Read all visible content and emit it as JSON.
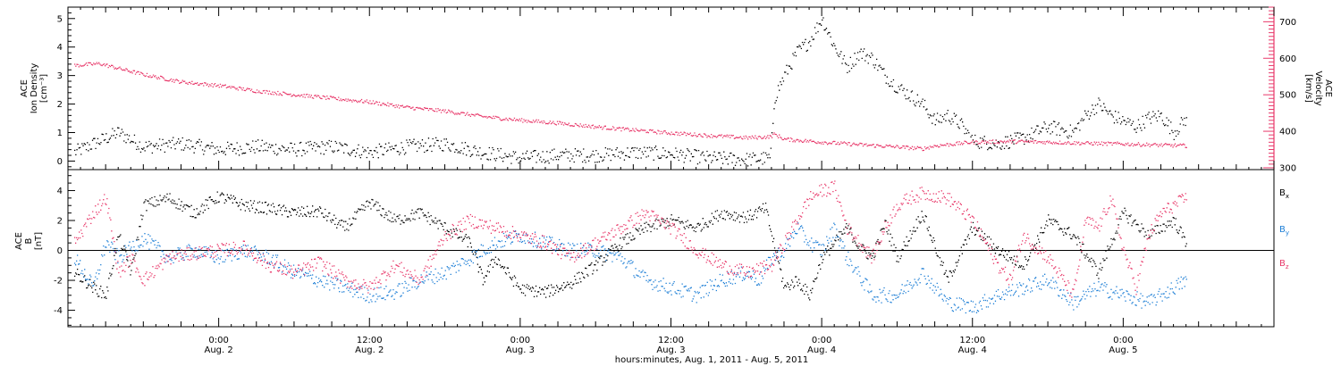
{
  "chart_data": [
    {
      "type": "scatter",
      "panel": "top",
      "left_axis": {
        "title_lines": [
          "ACE",
          "Ion Density",
          "[cm⁻³]"
        ],
        "ticks": [
          0,
          1,
          2,
          3,
          4,
          5
        ],
        "ylim": [
          -0.3,
          5.4
        ]
      },
      "right_axis": {
        "title_lines": [
          "ACE",
          "Velocity",
          "[km/s]"
        ],
        "ticks": [
          300,
          400,
          500,
          600,
          700
        ],
        "ylim": [
          295,
          740
        ]
      },
      "x_hours_lim": [
        -12,
        84
      ],
      "series": [
        {
          "axis": "left",
          "color": "#000000",
          "knots": [
            [
              -11.5,
              0.3
            ],
            [
              -9,
              0.8
            ],
            [
              -8,
              1.0
            ],
            [
              -6,
              0.5
            ],
            [
              -3,
              0.6
            ],
            [
              0,
              0.4
            ],
            [
              3,
              0.5
            ],
            [
              6,
              0.4
            ],
            [
              9,
              0.5
            ],
            [
              12,
              0.3
            ],
            [
              15,
              0.5
            ],
            [
              18,
              0.6
            ],
            [
              21,
              0.3
            ],
            [
              24,
              0.1
            ],
            [
              27,
              0.2
            ],
            [
              30,
              0.2
            ],
            [
              33,
              0.3
            ],
            [
              36,
              0.25
            ],
            [
              39,
              0.1
            ],
            [
              42,
              0.05
            ],
            [
              43.9,
              0.1
            ],
            [
              44.2,
              2.2
            ],
            [
              45,
              3.0
            ],
            [
              46,
              3.8
            ],
            [
              47,
              4.2
            ],
            [
              48,
              5.0
            ],
            [
              49,
              4.0
            ],
            [
              50,
              3.3
            ],
            [
              51,
              3.8
            ],
            [
              52,
              3.6
            ],
            [
              53,
              3.0
            ],
            [
              54,
              2.6
            ],
            [
              55,
              2.3
            ],
            [
              56,
              2.0
            ],
            [
              57,
              1.4
            ],
            [
              58,
              1.6
            ],
            [
              59,
              1.3
            ],
            [
              60,
              0.7
            ],
            [
              62,
              0.6
            ],
            [
              64,
              0.8
            ],
            [
              66,
              1.2
            ],
            [
              68,
              1.0
            ],
            [
              69,
              1.6
            ],
            [
              70,
              2.0
            ],
            [
              71,
              1.6
            ],
            [
              72,
              1.4
            ],
            [
              73,
              1.2
            ],
            [
              74,
              1.5
            ],
            [
              75,
              1.6
            ],
            [
              76,
              1.0
            ],
            [
              77,
              1.5
            ]
          ],
          "spread": 0.25
        },
        {
          "axis": "right",
          "color": "#e8386a",
          "knots": [
            [
              -11.5,
              580
            ],
            [
              -9.5,
              585
            ],
            [
              -6,
              555
            ],
            [
              -3,
              535
            ],
            [
              0,
              525
            ],
            [
              3,
              510
            ],
            [
              6,
              500
            ],
            [
              9,
              490
            ],
            [
              12,
              480
            ],
            [
              15,
              465
            ],
            [
              18,
              455
            ],
            [
              21,
              440
            ],
            [
              24,
              430
            ],
            [
              27,
              422
            ],
            [
              30,
              412
            ],
            [
              33,
              403
            ],
            [
              36,
              395
            ],
            [
              39,
              388
            ],
            [
              42,
              382
            ],
            [
              43.9,
              385
            ],
            [
              44.2,
              392
            ],
            [
              45,
              378
            ],
            [
              48,
              370
            ],
            [
              51,
              363
            ],
            [
              54,
              357
            ],
            [
              56,
              352
            ],
            [
              57,
              360
            ],
            [
              60,
              370
            ],
            [
              63,
              372
            ],
            [
              66,
              370
            ],
            [
              69,
              367
            ],
            [
              72,
              365
            ],
            [
              75,
              362
            ],
            [
              77,
              360
            ]
          ],
          "spread": 5
        }
      ]
    },
    {
      "type": "scatter",
      "panel": "bottom",
      "left_axis": {
        "title_lines": [
          "ACE",
          "B",
          "[nT]"
        ],
        "ticks": [
          -4,
          -2,
          0,
          2,
          4
        ],
        "ylim": [
          -5.1,
          5.4
        ]
      },
      "zero_line": 0,
      "x_hours_lim": [
        -12,
        84
      ],
      "legend": [
        {
          "label": "Bx",
          "main": "B",
          "sub": "x",
          "color": "#000000"
        },
        {
          "label": "By",
          "main": "B",
          "sub": "y",
          "color": "#1e7fd6"
        },
        {
          "label": "Bz",
          "main": "B",
          "sub": "z",
          "color": "#e8386a"
        }
      ],
      "series": [
        {
          "name": "Bx",
          "color": "#000000",
          "knots": [
            [
              -11.5,
              -1.5
            ],
            [
              -10,
              -2.5
            ],
            [
              -9,
              -3.0
            ],
            [
              -8,
              1.0
            ],
            [
              -7,
              -1.5
            ],
            [
              -6,
              3.0
            ],
            [
              -4,
              3.5
            ],
            [
              -2,
              2.5
            ],
            [
              0,
              3.6
            ],
            [
              2,
              3.0
            ],
            [
              4,
              2.8
            ],
            [
              6,
              2.5
            ],
            [
              8,
              2.6
            ],
            [
              10,
              1.5
            ],
            [
              12,
              3.2
            ],
            [
              14,
              2.0
            ],
            [
              16,
              2.5
            ],
            [
              18,
              1.5
            ],
            [
              20,
              0.5
            ],
            [
              21,
              -2.0
            ],
            [
              22,
              -0.5
            ],
            [
              24,
              -2.6
            ],
            [
              26,
              -2.8
            ],
            [
              28,
              -2.2
            ],
            [
              30,
              -1.0
            ],
            [
              32,
              0.5
            ],
            [
              34,
              1.5
            ],
            [
              36,
              2.0
            ],
            [
              38,
              1.5
            ],
            [
              40,
              2.5
            ],
            [
              42,
              2.2
            ],
            [
              43.5,
              2.8
            ],
            [
              44,
              1.0
            ],
            [
              45,
              -2.5
            ],
            [
              46,
              -2.0
            ],
            [
              47,
              -3.0
            ],
            [
              48,
              -0.5
            ],
            [
              50,
              1.5
            ],
            [
              51,
              0.2
            ],
            [
              52,
              -0.5
            ],
            [
              53,
              1.8
            ],
            [
              54,
              -0.5
            ],
            [
              56,
              2.5
            ],
            [
              58,
              -2.0
            ],
            [
              60,
              1.5
            ],
            [
              62,
              0.0
            ],
            [
              64,
              -1.0
            ],
            [
              66,
              2.0
            ],
            [
              68,
              1.0
            ],
            [
              70,
              -1.5
            ],
            [
              72,
              2.5
            ],
            [
              74,
              1.0
            ],
            [
              76,
              2.0
            ],
            [
              77,
              0.5
            ]
          ],
          "spread": 0.4
        },
        {
          "name": "By",
          "color": "#1e7fd6",
          "knots": [
            [
              -11.5,
              -0.5
            ],
            [
              -10,
              -2.5
            ],
            [
              -9,
              0.5
            ],
            [
              -8,
              -0.5
            ],
            [
              -6,
              0.8
            ],
            [
              -4,
              -0.5
            ],
            [
              -2,
              0.0
            ],
            [
              0,
              -0.5
            ],
            [
              2,
              0.0
            ],
            [
              4,
              -0.5
            ],
            [
              6,
              -1.5
            ],
            [
              8,
              -2.0
            ],
            [
              10,
              -2.5
            ],
            [
              12,
              -3.0
            ],
            [
              14,
              -2.8
            ],
            [
              16,
              -2.0
            ],
            [
              18,
              -1.5
            ],
            [
              20,
              -0.5
            ],
            [
              22,
              0.5
            ],
            [
              24,
              1.0
            ],
            [
              26,
              0.5
            ],
            [
              28,
              0.0
            ],
            [
              30,
              0.0
            ],
            [
              32,
              -0.5
            ],
            [
              34,
              -2.0
            ],
            [
              36,
              -2.5
            ],
            [
              38,
              -3.0
            ],
            [
              40,
              -2.0
            ],
            [
              42,
              -1.5
            ],
            [
              43,
              -2.0
            ],
            [
              44,
              -0.5
            ],
            [
              45,
              0.0
            ],
            [
              46,
              1.5
            ],
            [
              47,
              0.5
            ],
            [
              48,
              0.0
            ],
            [
              49,
              1.5
            ],
            [
              50,
              -0.5
            ],
            [
              52,
              -3.0
            ],
            [
              54,
              -3.0
            ],
            [
              56,
              -1.5
            ],
            [
              58,
              -3.5
            ],
            [
              60,
              -3.8
            ],
            [
              62,
              -3.0
            ],
            [
              64,
              -2.5
            ],
            [
              66,
              -2.0
            ],
            [
              68,
              -3.5
            ],
            [
              70,
              -2.5
            ],
            [
              72,
              -3.0
            ],
            [
              74,
              -3.5
            ],
            [
              76,
              -2.5
            ],
            [
              77,
              -2.0
            ]
          ],
          "spread": 0.5
        },
        {
          "name": "Bz",
          "color": "#e8386a",
          "knots": [
            [
              -11.5,
              0.5
            ],
            [
              -10,
              2.5
            ],
            [
              -9,
              3.5
            ],
            [
              -8,
              -1.5
            ],
            [
              -7,
              -0.5
            ],
            [
              -6,
              -2.0
            ],
            [
              -4,
              -0.5
            ],
            [
              -2,
              -0.2
            ],
            [
              0,
              0.0
            ],
            [
              2,
              0.2
            ],
            [
              4,
              -1.0
            ],
            [
              6,
              -1.5
            ],
            [
              8,
              -0.8
            ],
            [
              10,
              -2.0
            ],
            [
              12,
              -2.5
            ],
            [
              14,
              -1.0
            ],
            [
              16,
              -2.0
            ],
            [
              18,
              1.0
            ],
            [
              20,
              2.0
            ],
            [
              22,
              1.5
            ],
            [
              24,
              1.0
            ],
            [
              26,
              0.5
            ],
            [
              28,
              -0.5
            ],
            [
              30,
              0.5
            ],
            [
              32,
              1.5
            ],
            [
              34,
              2.5
            ],
            [
              36,
              1.5
            ],
            [
              38,
              0.0
            ],
            [
              40,
              -1.0
            ],
            [
              42,
              -1.5
            ],
            [
              44,
              -1.0
            ],
            [
              45,
              0.5
            ],
            [
              46,
              2.0
            ],
            [
              47,
              3.5
            ],
            [
              48,
              4.0
            ],
            [
              49,
              4.2
            ],
            [
              50,
              1.5
            ],
            [
              51,
              0.5
            ],
            [
              52,
              -0.5
            ],
            [
              53,
              1.5
            ],
            [
              54,
              3.0
            ],
            [
              55,
              3.5
            ],
            [
              56,
              3.8
            ],
            [
              58,
              3.5
            ],
            [
              60,
              2.0
            ],
            [
              61,
              0.5
            ],
            [
              62,
              -1.0
            ],
            [
              63,
              -2.0
            ],
            [
              64,
              1.0
            ],
            [
              66,
              -0.5
            ],
            [
              68,
              -3.0
            ],
            [
              69,
              2.0
            ],
            [
              70,
              1.5
            ],
            [
              71,
              3.5
            ],
            [
              72,
              0.0
            ],
            [
              73,
              -2.5
            ],
            [
              74,
              1.0
            ],
            [
              75,
              2.5
            ],
            [
              76,
              3.0
            ],
            [
              77,
              3.5
            ]
          ],
          "spread": 0.45
        }
      ]
    }
  ],
  "x_axis": {
    "ticks": [
      {
        "hours": 0,
        "time": "0:00",
        "date": "Aug. 2"
      },
      {
        "hours": 12,
        "time": "12:00",
        "date": "Aug. 2"
      },
      {
        "hours": 24,
        "time": "0:00",
        "date": "Aug. 3"
      },
      {
        "hours": 36,
        "time": "12:00",
        "date": "Aug. 3"
      },
      {
        "hours": 48,
        "time": "0:00",
        "date": "Aug. 4"
      },
      {
        "hours": 60,
        "time": "12:00",
        "date": "Aug. 4"
      },
      {
        "hours": 72,
        "time": "0:00",
        "date": "Aug. 5"
      }
    ],
    "label": "hours:minutes, Aug.  1, 2011 - Aug.  5, 2011"
  },
  "colors": {
    "density": "#000000",
    "velocity": "#e8386a",
    "bx": "#000000",
    "by": "#1e7fd6",
    "bz": "#e8386a",
    "frame": "#000000"
  }
}
